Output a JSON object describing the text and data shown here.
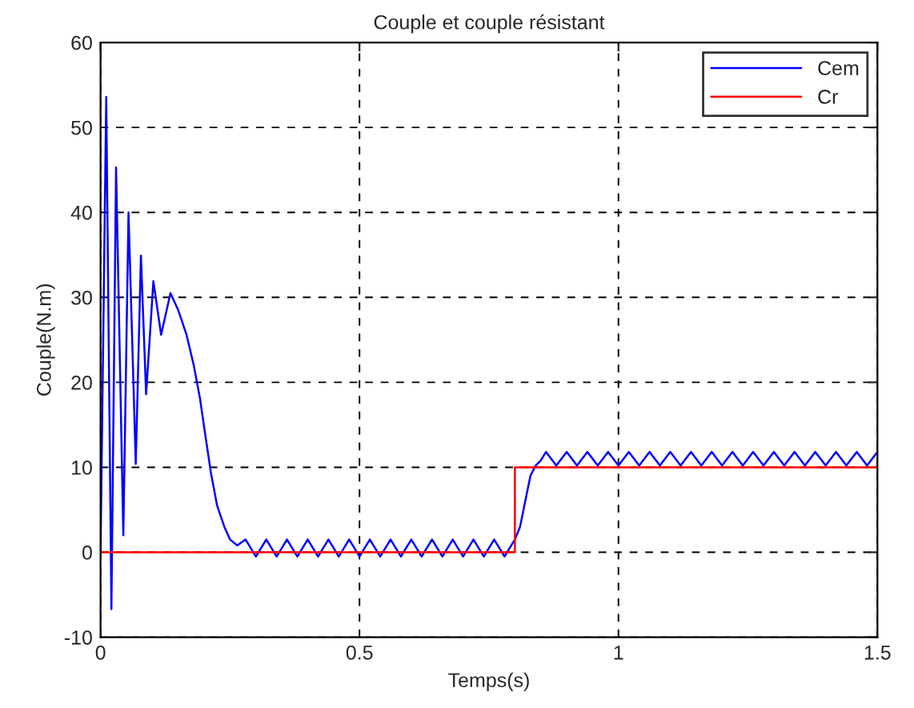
{
  "chart_data": {
    "type": "line",
    "title": "Couple et couple résistant",
    "xlabel": "Temps(s)",
    "ylabel": "Couple(N.m)",
    "xlim": [
      0,
      1.5
    ],
    "xticks": [
      0,
      0.5,
      1,
      1.5
    ],
    "ylim": [
      -10,
      60
    ],
    "yticks": [
      -10,
      0,
      10,
      20,
      30,
      40,
      50,
      60
    ],
    "grid": true,
    "legend": "top right",
    "series": [
      {
        "name": "Cem",
        "color": "#0000ff",
        "x": [
          0,
          0.011,
          0.021,
          0.03,
          0.044,
          0.054,
          0.068,
          0.078,
          0.088,
          0.102,
          0.117,
          0.135,
          0.15,
          0.166,
          0.18,
          0.192,
          0.203,
          0.213,
          0.225,
          0.239,
          0.25,
          0.264,
          0.28,
          0.3,
          0.32,
          0.34,
          0.36,
          0.38,
          0.4,
          0.42,
          0.44,
          0.46,
          0.48,
          0.5,
          0.52,
          0.54,
          0.56,
          0.58,
          0.6,
          0.62,
          0.64,
          0.66,
          0.68,
          0.7,
          0.72,
          0.74,
          0.76,
          0.78,
          0.8,
          0.81,
          0.82,
          0.83,
          0.84,
          0.85,
          0.86,
          0.88,
          0.9,
          0.92,
          0.94,
          0.96,
          0.98,
          1.0,
          1.02,
          1.04,
          1.06,
          1.08,
          1.1,
          1.12,
          1.14,
          1.16,
          1.18,
          1.2,
          1.22,
          1.24,
          1.26,
          1.28,
          1.3,
          1.32,
          1.34,
          1.36,
          1.38,
          1.4,
          1.42,
          1.44,
          1.46,
          1.48,
          1.5
        ],
        "values": [
          0,
          53.6,
          -6.7,
          45.3,
          2,
          40,
          10.4,
          34.9,
          18.6,
          31.9,
          25.6,
          30.5,
          28.5,
          25.6,
          22,
          18.1,
          13.5,
          9.4,
          5.5,
          3,
          1.5,
          0.8,
          1.5,
          -0.5,
          1.5,
          -0.5,
          1.5,
          -0.5,
          1.5,
          -0.5,
          1.5,
          -0.5,
          1.5,
          -0.5,
          1.5,
          -0.5,
          1.5,
          -0.5,
          1.5,
          -0.5,
          1.5,
          -0.5,
          1.5,
          -0.5,
          1.5,
          -0.5,
          1.5,
          -0.5,
          1.5,
          3,
          6,
          9,
          10.2,
          10.8,
          11.8,
          10.2,
          11.8,
          10.2,
          11.8,
          10.2,
          11.8,
          10.2,
          11.8,
          10.2,
          11.8,
          10.2,
          11.8,
          10.2,
          11.8,
          10.2,
          11.8,
          10.2,
          11.8,
          10.2,
          11.8,
          10.2,
          11.8,
          10.2,
          11.8,
          10.2,
          11.8,
          10.2,
          11.8,
          10.2,
          11.8,
          10.2,
          11.8
        ]
      },
      {
        "name": "Cr",
        "color": "#ff0000",
        "x": [
          0,
          0.8,
          0.8,
          1.5
        ],
        "values": [
          0,
          0,
          10,
          10
        ]
      }
    ]
  }
}
